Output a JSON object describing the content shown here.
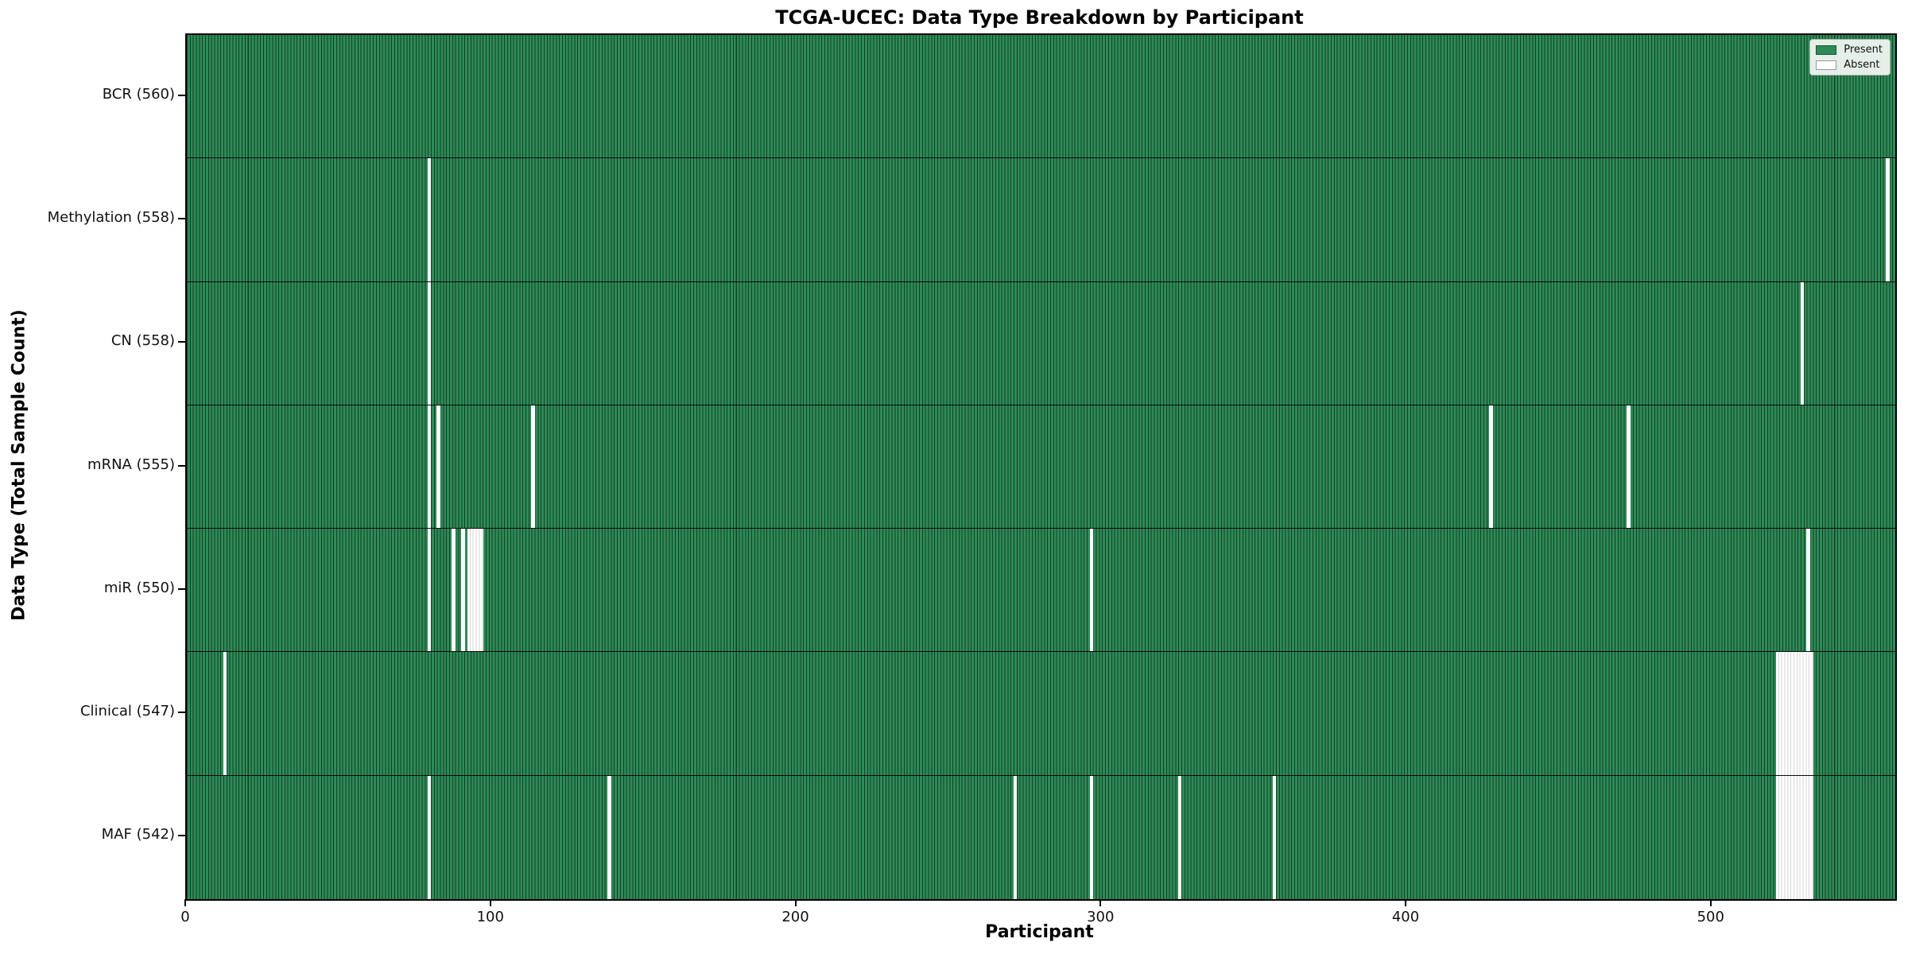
{
  "figure": {
    "background": "#ffffff"
  },
  "chart_data": {
    "type": "heatmap",
    "title": "TCGA-UCEC: Data Type Breakdown by Participant",
    "xlabel": "Participant",
    "ylabel": "Data Type (Total Sample Count)",
    "x_range": [
      0,
      560
    ],
    "participants_total": 560,
    "x_ticks": [
      0,
      100,
      200,
      300,
      400,
      500
    ],
    "grid": false,
    "legend": {
      "position": "upper right",
      "entries": [
        {
          "label": "Present",
          "color": "#2e8b57"
        },
        {
          "label": "Absent",
          "color": "#ffffff"
        }
      ]
    },
    "colors": {
      "present_fill": "#2e8b57",
      "bar_edge": "#123f26",
      "absent_fill": "#ffffff",
      "absent_edge": "#d6d6d6",
      "row_separator": "#0a0a0a"
    },
    "rows": [
      {
        "name": "bcr",
        "label": "BCR (560)",
        "data_type": "BCR",
        "total": 560,
        "absent": []
      },
      {
        "name": "methylation",
        "label": "Methylation (558)",
        "data_type": "Methylation",
        "total": 558,
        "absent": [
          79,
          557
        ]
      },
      {
        "name": "cn",
        "label": "CN (558)",
        "data_type": "CN",
        "total": 558,
        "absent": [
          79,
          529
        ]
      },
      {
        "name": "mrna",
        "label": "mRNA (555)",
        "data_type": "mRNA",
        "total": 555,
        "absent": [
          79,
          82,
          113,
          427,
          472
        ]
      },
      {
        "name": "mir",
        "label": "miR (550)",
        "data_type": "miR",
        "total": 550,
        "absent": [
          79,
          87,
          90,
          92,
          93,
          94,
          95,
          96,
          296,
          531
        ]
      },
      {
        "name": "clinical",
        "label": "Clinical (547)",
        "data_type": "Clinical",
        "total": 547,
        "absent": [
          12,
          521,
          522,
          523,
          524,
          525,
          526,
          527,
          528,
          529,
          530,
          531,
          532
        ]
      },
      {
        "name": "maf",
        "label": "MAF (542)",
        "data_type": "MAF",
        "total": 542,
        "absent": [
          79,
          138,
          271,
          296,
          325,
          356,
          521,
          522,
          523,
          524,
          525,
          526,
          527,
          528,
          529,
          530,
          531,
          532
        ]
      }
    ]
  }
}
